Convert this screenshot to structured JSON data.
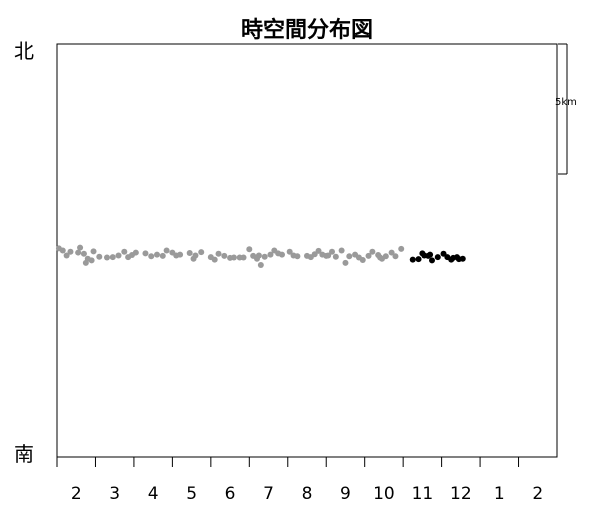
{
  "chart_data": {
    "type": "scatter",
    "title": "時空間分布図",
    "north_label": "北",
    "south_label": "南",
    "scale_label": "5km",
    "xlabel": "",
    "ylabel": "",
    "x_tick_labels": [
      "2",
      "3",
      "4",
      "5",
      "6",
      "7",
      "8",
      "9",
      "10",
      "11",
      "12",
      "1",
      "2"
    ],
    "xlim": [
      0,
      13
    ],
    "ylim": [
      0,
      1
    ],
    "grid": false,
    "colors": {
      "past": "#9a9a9a",
      "recent": "#000000"
    },
    "series": [
      {
        "style": "past",
        "points": [
          {
            "x": 0.05,
            "y": 0.505
          },
          {
            "x": 0.15,
            "y": 0.5
          },
          {
            "x": 0.25,
            "y": 0.488
          },
          {
            "x": 0.35,
            "y": 0.497
          },
          {
            "x": 0.55,
            "y": 0.495
          },
          {
            "x": 0.6,
            "y": 0.507
          },
          {
            "x": 0.7,
            "y": 0.492
          },
          {
            "x": 0.8,
            "y": 0.48
          },
          {
            "x": 0.75,
            "y": 0.47
          },
          {
            "x": 0.9,
            "y": 0.476
          },
          {
            "x": 0.95,
            "y": 0.498
          },
          {
            "x": 1.1,
            "y": 0.485
          },
          {
            "x": 1.3,
            "y": 0.483
          },
          {
            "x": 1.45,
            "y": 0.484
          },
          {
            "x": 1.6,
            "y": 0.488
          },
          {
            "x": 1.75,
            "y": 0.497
          },
          {
            "x": 1.85,
            "y": 0.484
          },
          {
            "x": 1.95,
            "y": 0.489
          },
          {
            "x": 2.05,
            "y": 0.495
          },
          {
            "x": 2.3,
            "y": 0.493
          },
          {
            "x": 2.45,
            "y": 0.486
          },
          {
            "x": 2.6,
            "y": 0.49
          },
          {
            "x": 2.75,
            "y": 0.487
          },
          {
            "x": 2.85,
            "y": 0.5
          },
          {
            "x": 3.0,
            "y": 0.495
          },
          {
            "x": 3.1,
            "y": 0.488
          },
          {
            "x": 3.2,
            "y": 0.49
          },
          {
            "x": 3.45,
            "y": 0.494
          },
          {
            "x": 3.55,
            "y": 0.48
          },
          {
            "x": 3.6,
            "y": 0.488
          },
          {
            "x": 3.75,
            "y": 0.496
          },
          {
            "x": 4.0,
            "y": 0.484
          },
          {
            "x": 4.1,
            "y": 0.478
          },
          {
            "x": 4.2,
            "y": 0.492
          },
          {
            "x": 4.35,
            "y": 0.487
          },
          {
            "x": 4.5,
            "y": 0.482
          },
          {
            "x": 4.6,
            "y": 0.483
          },
          {
            "x": 4.75,
            "y": 0.483
          },
          {
            "x": 4.85,
            "y": 0.483
          },
          {
            "x": 5.0,
            "y": 0.503
          },
          {
            "x": 5.1,
            "y": 0.487
          },
          {
            "x": 5.2,
            "y": 0.48
          },
          {
            "x": 5.25,
            "y": 0.488
          },
          {
            "x": 5.3,
            "y": 0.465
          },
          {
            "x": 5.4,
            "y": 0.485
          },
          {
            "x": 5.55,
            "y": 0.49
          },
          {
            "x": 5.65,
            "y": 0.5
          },
          {
            "x": 5.75,
            "y": 0.493
          },
          {
            "x": 5.85,
            "y": 0.49
          },
          {
            "x": 6.05,
            "y": 0.497
          },
          {
            "x": 6.15,
            "y": 0.488
          },
          {
            "x": 6.25,
            "y": 0.486
          },
          {
            "x": 6.5,
            "y": 0.487
          },
          {
            "x": 6.6,
            "y": 0.484
          },
          {
            "x": 6.7,
            "y": 0.491
          },
          {
            "x": 6.8,
            "y": 0.499
          },
          {
            "x": 6.9,
            "y": 0.49
          },
          {
            "x": 7.05,
            "y": 0.488
          },
          {
            "x": 7.15,
            "y": 0.497
          },
          {
            "x": 7.25,
            "y": 0.485
          },
          {
            "x": 7.4,
            "y": 0.5
          },
          {
            "x": 7.5,
            "y": 0.47
          },
          {
            "x": 7.6,
            "y": 0.486
          },
          {
            "x": 7.75,
            "y": 0.49
          },
          {
            "x": 7.85,
            "y": 0.483
          },
          {
            "x": 7.95,
            "y": 0.477
          },
          {
            "x": 8.1,
            "y": 0.487
          },
          {
            "x": 8.2,
            "y": 0.497
          },
          {
            "x": 8.35,
            "y": 0.489
          },
          {
            "x": 8.45,
            "y": 0.48
          },
          {
            "x": 8.55,
            "y": 0.486
          },
          {
            "x": 8.7,
            "y": 0.495
          },
          {
            "x": 8.8,
            "y": 0.486
          },
          {
            "x": 8.95,
            "y": 0.504
          },
          {
            "x": 8.4,
            "y": 0.483
          },
          {
            "x": 7.0,
            "y": 0.487
          }
        ]
      },
      {
        "style": "recent",
        "points": [
          {
            "x": 9.25,
            "y": 0.478
          },
          {
            "x": 9.4,
            "y": 0.479
          },
          {
            "x": 9.5,
            "y": 0.493
          },
          {
            "x": 9.55,
            "y": 0.488
          },
          {
            "x": 9.65,
            "y": 0.487
          },
          {
            "x": 9.7,
            "y": 0.49
          },
          {
            "x": 9.75,
            "y": 0.476
          },
          {
            "x": 9.9,
            "y": 0.484
          },
          {
            "x": 10.05,
            "y": 0.492
          },
          {
            "x": 10.15,
            "y": 0.484
          },
          {
            "x": 10.25,
            "y": 0.478
          },
          {
            "x": 10.3,
            "y": 0.482
          },
          {
            "x": 10.4,
            "y": 0.484
          },
          {
            "x": 10.45,
            "y": 0.479
          },
          {
            "x": 10.55,
            "y": 0.48
          }
        ]
      }
    ]
  }
}
